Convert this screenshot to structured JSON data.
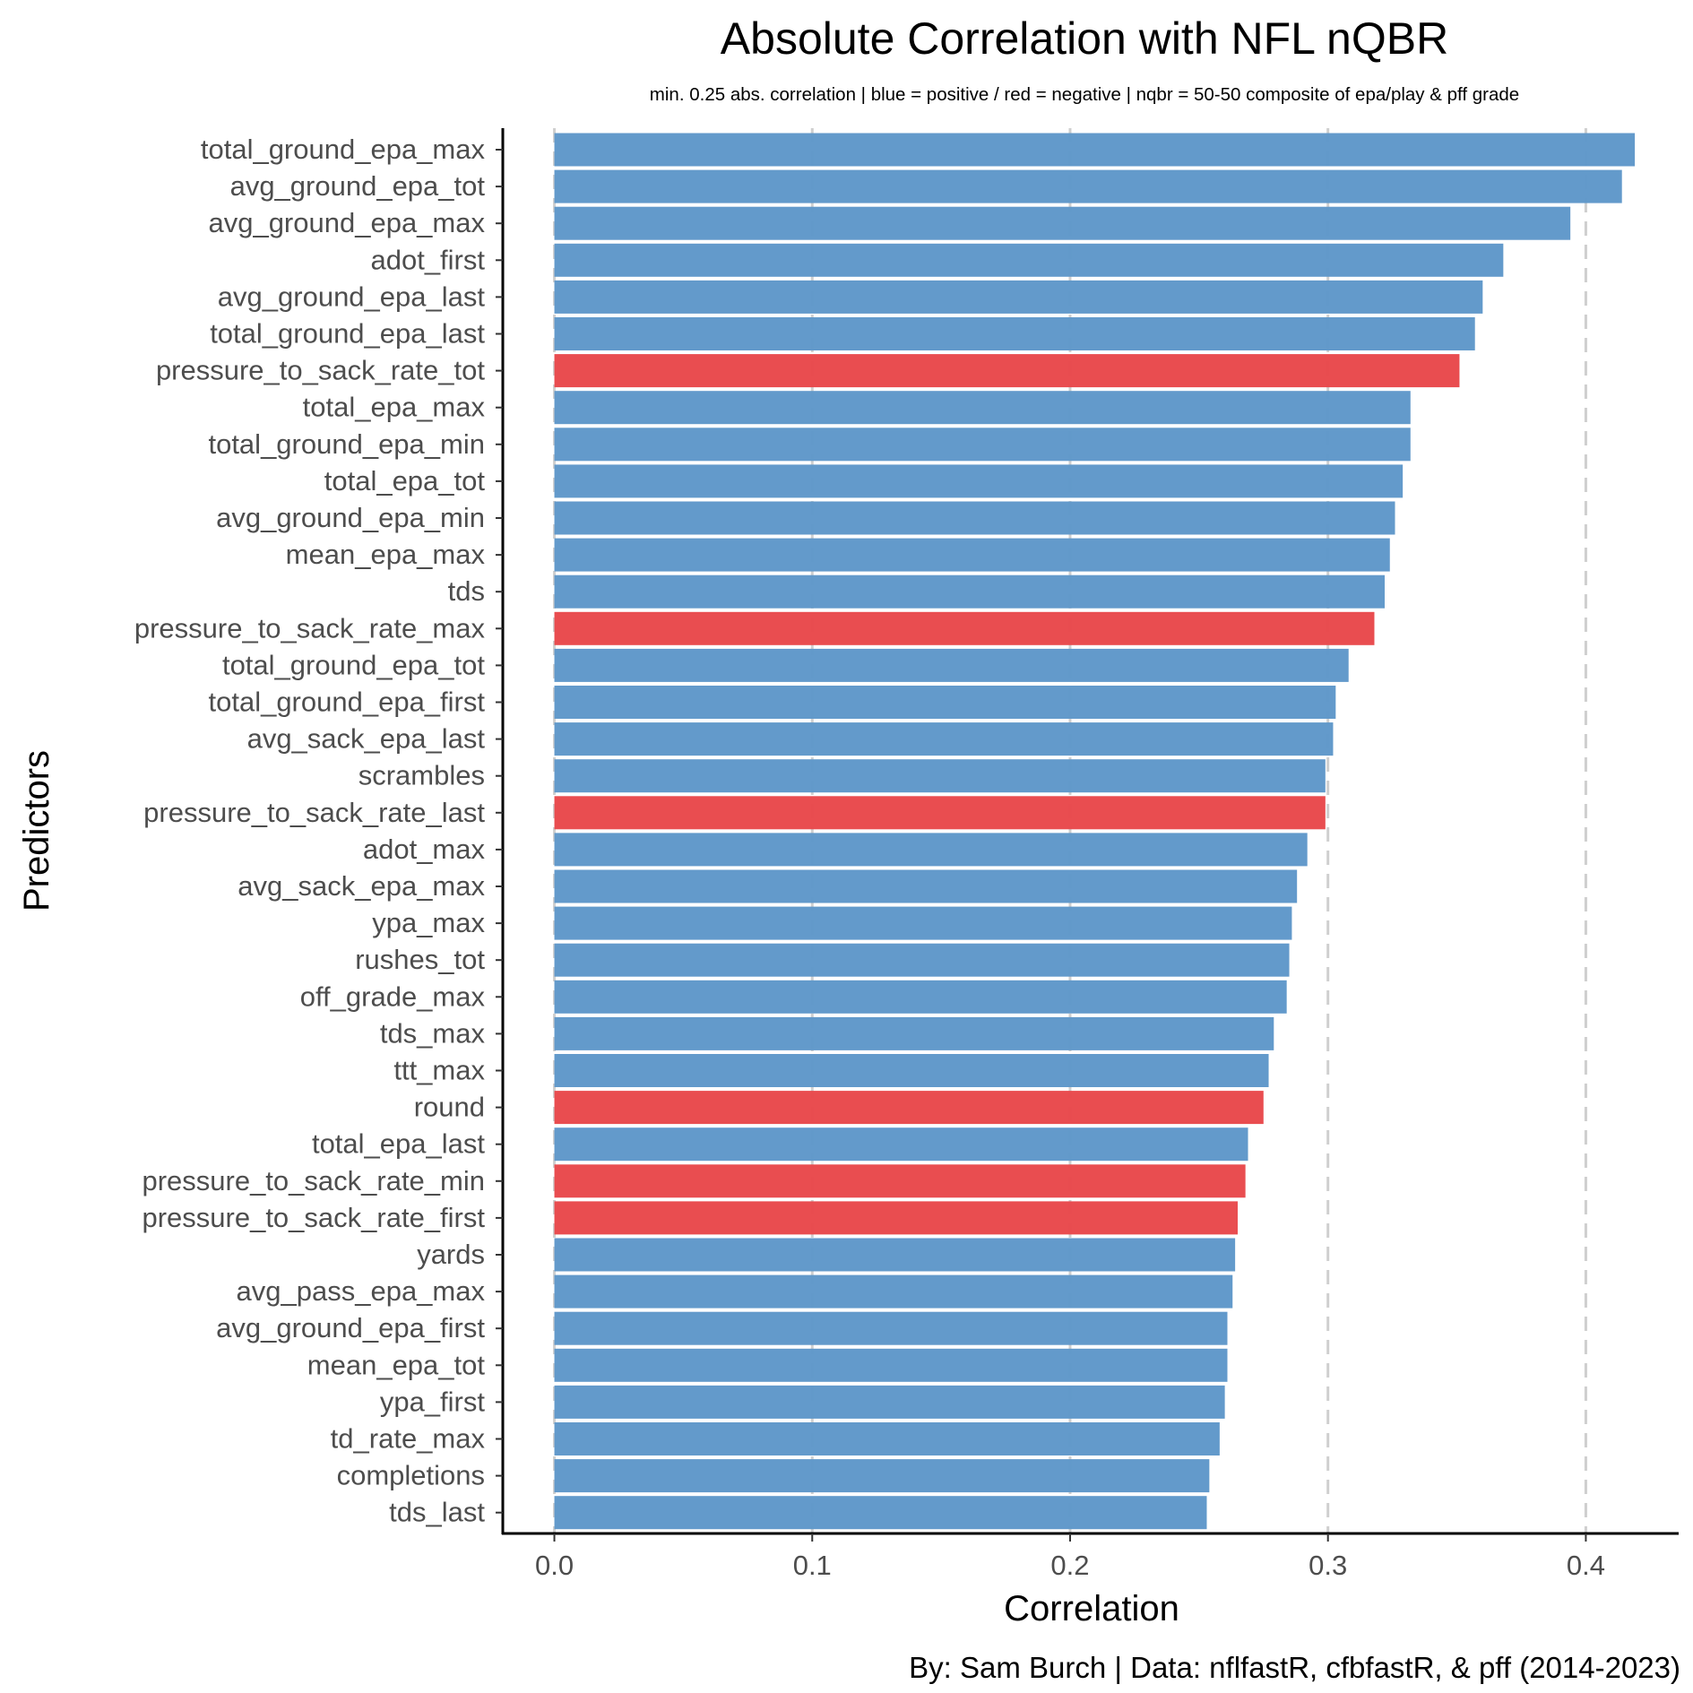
{
  "chart_data": {
    "type": "bar",
    "orientation": "horizontal",
    "title": "Absolute Correlation with NFL nQBR",
    "subtitle": "min. 0.25 abs. correlation  |  blue = positive / red = negative  |  nqbr = 50-50 composite of epa/play & pff grade",
    "caption": "By: Sam Burch  |  Data: nflfastR, cfbfastR, & pff (2014-2023)",
    "xlabel": "Correlation",
    "ylabel": "Predictors",
    "xlim": [
      -0.02,
      0.436
    ],
    "xticks": [
      0.0,
      0.1,
      0.2,
      0.3,
      0.4
    ],
    "xtick_labels": [
      "0.0",
      "0.1",
      "0.2",
      "0.3",
      "0.4"
    ],
    "grid": "vertical dashed",
    "legend": "none",
    "colors": {
      "positive": "#5E97C9",
      "negative": "#E8474A"
    },
    "categories": [
      "total_ground_epa_max",
      "avg_ground_epa_tot",
      "avg_ground_epa_max",
      "adot_first",
      "avg_ground_epa_last",
      "total_ground_epa_last",
      "pressure_to_sack_rate_tot",
      "total_epa_max",
      "total_ground_epa_min",
      "total_epa_tot",
      "avg_ground_epa_min",
      "mean_epa_max",
      "tds",
      "pressure_to_sack_rate_max",
      "total_ground_epa_tot",
      "total_ground_epa_first",
      "avg_sack_epa_last",
      "scrambles",
      "pressure_to_sack_rate_last",
      "adot_max",
      "avg_sack_epa_max",
      "ypa_max",
      "rushes_tot",
      "off_grade_max",
      "tds_max",
      "ttt_max",
      "round",
      "total_epa_last",
      "pressure_to_sack_rate_min",
      "pressure_to_sack_rate_first",
      "yards",
      "avg_pass_epa_max",
      "avg_ground_epa_first",
      "mean_epa_tot",
      "ypa_first",
      "td_rate_max",
      "completions",
      "tds_last"
    ],
    "values": [
      0.419,
      0.414,
      0.394,
      0.368,
      0.36,
      0.357,
      0.351,
      0.332,
      0.332,
      0.329,
      0.326,
      0.324,
      0.322,
      0.318,
      0.308,
      0.303,
      0.302,
      0.299,
      0.299,
      0.292,
      0.288,
      0.286,
      0.285,
      0.284,
      0.279,
      0.277,
      0.275,
      0.269,
      0.268,
      0.265,
      0.264,
      0.263,
      0.261,
      0.261,
      0.26,
      0.258,
      0.254,
      0.253
    ],
    "sign": [
      "positive",
      "positive",
      "positive",
      "positive",
      "positive",
      "positive",
      "negative",
      "positive",
      "positive",
      "positive",
      "positive",
      "positive",
      "positive",
      "negative",
      "positive",
      "positive",
      "positive",
      "positive",
      "negative",
      "positive",
      "positive",
      "positive",
      "positive",
      "positive",
      "positive",
      "positive",
      "negative",
      "positive",
      "negative",
      "negative",
      "positive",
      "positive",
      "positive",
      "positive",
      "positive",
      "positive",
      "positive",
      "positive"
    ]
  }
}
